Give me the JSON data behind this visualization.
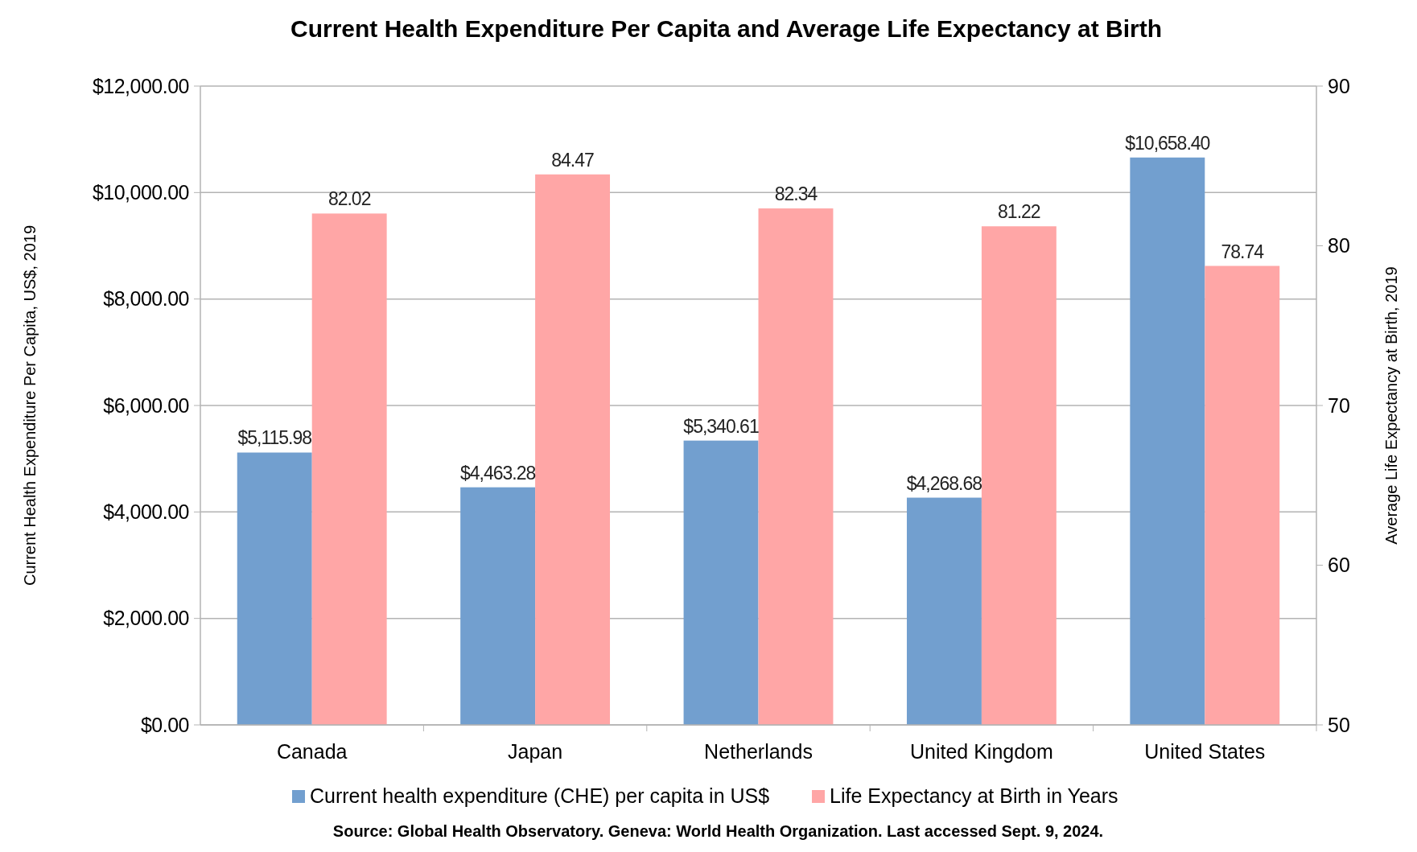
{
  "chart_data": {
    "type": "bar",
    "title": "Current Health Expenditure Per Capita and Average Life Expectancy at Birth",
    "ylabel": "Current Health Expenditure Per Capita, US$, 2019",
    "y2label": "Average Life Expectancy at Birth, 2019",
    "categories": [
      "Canada",
      "Japan",
      "Netherlands",
      "United Kingdom",
      "United States"
    ],
    "series": [
      {
        "name": "Current health expenditure (CHE) per capita in US$",
        "color": "#729fcf",
        "values": [
          5115.98,
          4463.28,
          5340.61,
          4268.68,
          10658.4
        ],
        "value_labels": [
          "$5,115.98",
          "$4,463.28",
          "$5,340.61",
          "$4,268.68",
          "$10,658.40"
        ]
      },
      {
        "name": "Life Expectancy at Birth in Years",
        "color": "#ffa6a6",
        "axis": "y2",
        "values": [
          82.02,
          84.47,
          82.34,
          81.22,
          78.74
        ],
        "value_labels": [
          "82.02",
          "84.47",
          "82.34",
          "81.22",
          "78.74"
        ]
      }
    ],
    "ylim": [
      0,
      12000
    ],
    "yticks": [
      {
        "value": 0,
        "label": "$0.00"
      },
      {
        "value": 2000,
        "label": "$2,000.00"
      },
      {
        "value": 4000,
        "label": "$4,000.00"
      },
      {
        "value": 6000,
        "label": "$6,000.00"
      },
      {
        "value": 8000,
        "label": "$8,000.00"
      },
      {
        "value": 10000,
        "label": "$10,000.00"
      },
      {
        "value": 12000,
        "label": "$12,000.00"
      }
    ],
    "y2lim": [
      50,
      90
    ],
    "y2ticks": [
      50,
      60,
      70,
      80,
      90
    ],
    "grid": "y",
    "legend": "bottom",
    "annotations": [
      "Source: Global Health Observatory. Geneva: World Health Organization. Last accessed Sept. 9, 2024."
    ]
  }
}
